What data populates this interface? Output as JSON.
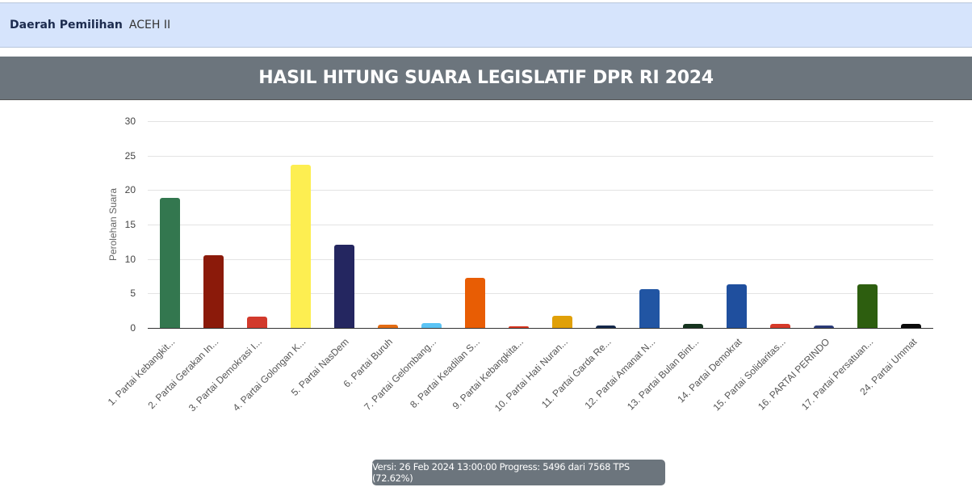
{
  "header": {
    "label": "Daerah Pemilihan",
    "value": "ACEH II"
  },
  "title": "HASIL HITUNG SUARA LEGISLATIF DPR RI 2024",
  "footer": {
    "status": "Versi: 26 Feb 2024 13:00:00 Progress: 5496 dari 7568 TPS (72.62%)"
  },
  "chart_data": {
    "type": "bar",
    "title": "HASIL HITUNG SUARA LEGISLATIF DPR RI 2024",
    "xlabel": "",
    "ylabel": "Perolehan Suara",
    "ylim": [
      0,
      30
    ],
    "yticks": [
      0,
      5,
      10,
      15,
      20,
      25,
      30
    ],
    "grid": true,
    "legend": "none",
    "categories": [
      "1. Partai Kebangkit...",
      "2. Partai Gerakan In...",
      "3. Partai Demokrasi I...",
      "4. Partai Golongan K...",
      "5. Partai NasDem",
      "6. Partai Buruh",
      "7. Partai Gelombang...",
      "8. Partai Keadilan S...",
      "9. Partai Kebangkita...",
      "10. Partai Hati Nuran...",
      "11. Partai Garda Re...",
      "12. Partai Amanat N...",
      "13. Partai Bulan Bint...",
      "14. Partai Demokrat",
      "15. Partai Solidaritas...",
      "16. PARTAI PERINDO",
      "17. Partai Persatuan...",
      "24. Partai Ummat"
    ],
    "values": [
      18.9,
      10.6,
      1.6,
      23.7,
      12.1,
      0.5,
      0.7,
      7.3,
      0.25,
      1.7,
      0.35,
      5.6,
      0.6,
      6.3,
      0.6,
      0.35,
      6.3,
      0.6
    ],
    "colors": [
      "#33774f",
      "#8b1a0a",
      "#d23a2c",
      "#fdee51",
      "#242660",
      "#e36b12",
      "#5bc4f5",
      "#e85d04",
      "#d7351f",
      "#e0a008",
      "#14284b",
      "#2155a3",
      "#16341f",
      "#1f4f9e",
      "#d63a2a",
      "#2a3b78",
      "#2d5e0f",
      "#0a0a0a"
    ]
  }
}
